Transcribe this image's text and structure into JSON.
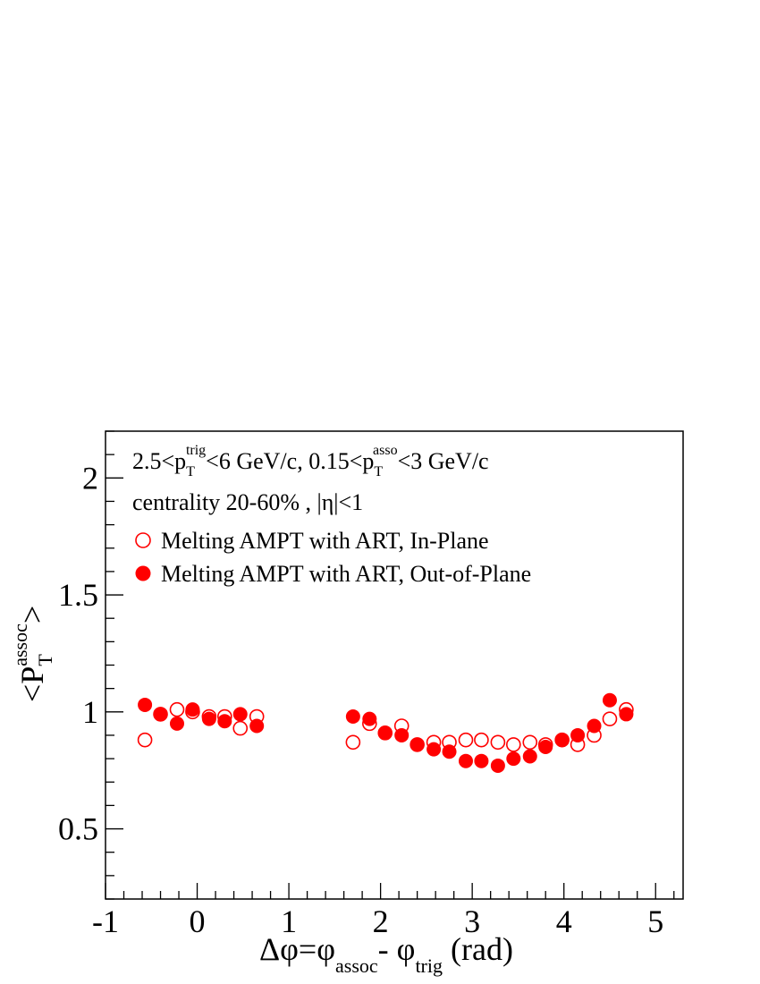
{
  "chart_data": {
    "type": "scatter",
    "xlabel": {
      "base": "Δφ=φ",
      "sub1": "assoc",
      "mid": "- φ",
      "sub2": "trig",
      "end": " (rad)"
    },
    "ylabel": {
      "open": "<P",
      "sub": "T",
      "sup": "assoc",
      "close": ">"
    },
    "xlim": [
      -1,
      5.3
    ],
    "ylim": [
      0.2,
      2.2
    ],
    "x_ticks": [
      -1,
      0,
      1,
      2,
      3,
      4,
      5
    ],
    "x_tick_labels": [
      "-1",
      "0",
      "1",
      "2",
      "3",
      "4",
      "5"
    ],
    "y_ticks": [
      0.5,
      1,
      1.5,
      2
    ],
    "y_tick_labels": [
      "0.5",
      "1",
      "1.5",
      "2"
    ],
    "grid": false,
    "legend_placement": "top-left",
    "annotations": [
      {
        "parts": [
          "2.5<p",
          "T",
          "trig",
          "<6 GeV/c, 0.15<p",
          "T",
          "asso",
          "<3 GeV/c"
        ]
      },
      {
        "text": "centrality 20-60% ,  |η|<1"
      }
    ],
    "series": [
      {
        "name": "Melting AMPT with ART, In-Plane",
        "marker": "open-circle",
        "color": "#ff0000",
        "x": [
          -0.57,
          -0.4,
          -0.22,
          -0.05,
          0.13,
          0.3,
          0.47,
          0.65,
          1.7,
          1.88,
          2.05,
          2.23,
          2.4,
          2.58,
          2.75,
          2.93,
          3.1,
          3.28,
          3.45,
          3.63,
          3.8,
          3.98,
          4.15,
          4.33,
          4.5,
          4.68
        ],
        "y": [
          0.88,
          0.99,
          1.01,
          1.0,
          0.98,
          0.98,
          0.93,
          0.98,
          0.87,
          0.95,
          0.91,
          0.94,
          0.86,
          0.87,
          0.87,
          0.88,
          0.88,
          0.87,
          0.86,
          0.87,
          0.86,
          0.88,
          0.86,
          0.9,
          0.97,
          1.01
        ]
      },
      {
        "name": "Melting AMPT with ART, Out-of-Plane",
        "marker": "filled-circle",
        "color": "#ff0000",
        "x": [
          -0.57,
          -0.4,
          -0.22,
          -0.05,
          0.13,
          0.3,
          0.47,
          0.65,
          1.7,
          1.88,
          2.05,
          2.23,
          2.4,
          2.58,
          2.75,
          2.93,
          3.1,
          3.28,
          3.45,
          3.63,
          3.8,
          3.98,
          4.15,
          4.33,
          4.5,
          4.68
        ],
        "y": [
          1.03,
          0.99,
          0.95,
          1.01,
          0.97,
          0.96,
          0.99,
          0.94,
          0.98,
          0.97,
          0.91,
          0.9,
          0.86,
          0.84,
          0.83,
          0.79,
          0.79,
          0.77,
          0.8,
          0.81,
          0.85,
          0.88,
          0.9,
          0.94,
          1.05,
          0.99
        ],
        "y_err": [
          0.025,
          0.01,
          0.01,
          0.01,
          0.01,
          0.01,
          0.01,
          0.025,
          0.01,
          0.01,
          0.01,
          0.01,
          0.01,
          0.01,
          0.01,
          0.01,
          0.01,
          0.01,
          0.01,
          0.01,
          0.01,
          0.01,
          0.01,
          0.01,
          0.01,
          0.01
        ]
      }
    ]
  }
}
